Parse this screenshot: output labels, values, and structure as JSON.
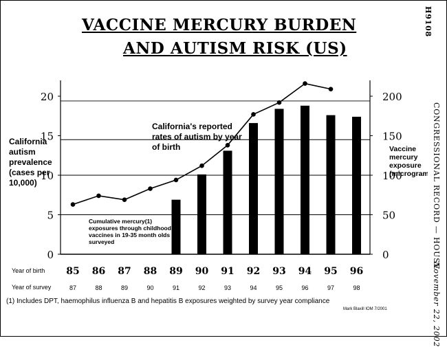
{
  "page": {
    "title_line1": "VACCINE MERCURY BURDEN",
    "title_line2": "AND AUTISM RISK  (US)",
    "page_number": "H9108",
    "running_head": "CONGRESSIONAL RECORD — HOUSE",
    "date": "November 22, 2002",
    "footnote": "(1)  Includes DPT, haemophilus influenza B and hepatitis B exposures weighted by survey year compliance",
    "credit": "Mark Blaxill IOM 7/2001"
  },
  "chart_data": {
    "type": "bar",
    "title": "",
    "categories": [
      "85",
      "86",
      "87",
      "88",
      "89",
      "90",
      "91",
      "92",
      "93",
      "94",
      "95",
      "96"
    ],
    "row_labels": {
      "birth": "Year of birth",
      "survey": "Year of survey"
    },
    "survey_years": [
      "87",
      "88",
      "89",
      "90",
      "91",
      "92",
      "93",
      "94",
      "95",
      "96",
      "97",
      "98"
    ],
    "left_axis_label": "California autism prevalence (cases per 10,000)",
    "right_axis_label": "Vaccine mercury exposure (micrograms)",
    "left_ylim": [
      0,
      22
    ],
    "right_ylim": [
      0,
      220
    ],
    "left_ticks": [
      0,
      5,
      10,
      15,
      20
    ],
    "right_ticks": [
      0,
      50,
      100,
      150,
      200
    ],
    "gridlines": [
      5,
      10,
      14.5,
      19.4
    ],
    "series": [
      {
        "name": "Cumulative mercury(1) exposures through childhood vaccines in 19-35 month olds surveyed",
        "kind": "bar",
        "axis": "right",
        "values": [
          null,
          null,
          null,
          null,
          69,
          101,
          131,
          166,
          184,
          188,
          176,
          174
        ]
      },
      {
        "name": "California's reported rates of autism by year of birth",
        "kind": "line",
        "axis": "left",
        "values": [
          6.3,
          7.4,
          6.9,
          8.3,
          9.4,
          11.2,
          13.8,
          17.7,
          19.2,
          21.6,
          20.9,
          null
        ]
      }
    ],
    "annotations": {
      "line_callout": "California's reported rates of autism by year of birth",
      "bar_callout": "Cumulative mercury(1) exposures through childhood vaccines in 19-35 month olds surveyed"
    },
    "colors": {
      "bars": "#000000",
      "line": "#000000",
      "grid": "#000000"
    }
  }
}
